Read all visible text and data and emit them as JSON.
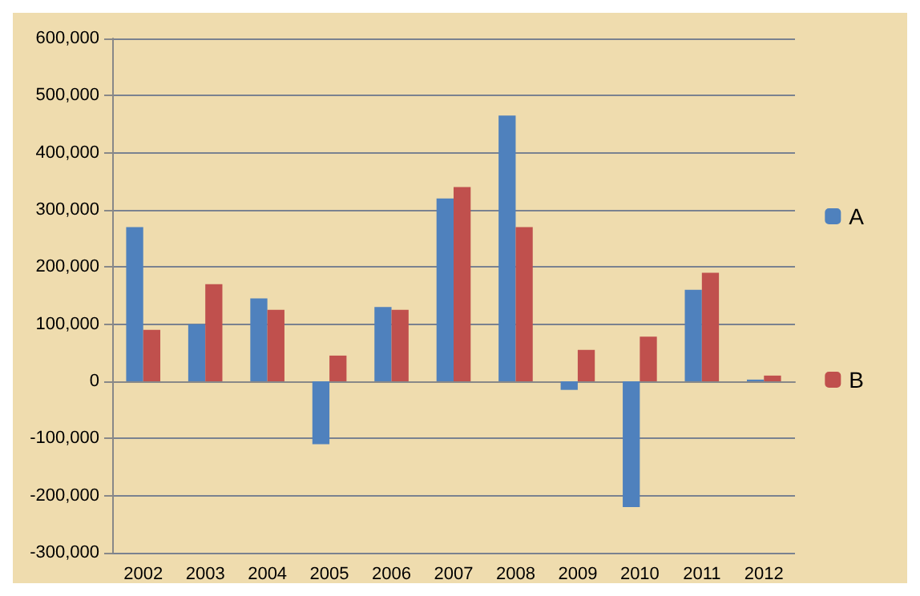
{
  "chart_data": {
    "type": "bar",
    "categories": [
      "2002",
      "2003",
      "2004",
      "2005",
      "2006",
      "2007",
      "2008",
      "2009",
      "2010",
      "2011",
      "2012"
    ],
    "series": [
      {
        "name": "A",
        "color": "#4f81bd",
        "values": [
          270000,
          100000,
          145000,
          -110000,
          130000,
          320000,
          465000,
          -15000,
          -220000,
          160000,
          3000
        ]
      },
      {
        "name": "B",
        "color": "#c0504d",
        "values": [
          90000,
          170000,
          125000,
          45000,
          125000,
          340000,
          270000,
          55000,
          78000,
          190000,
          10000
        ]
      }
    ],
    "ylim": [
      -300000,
      600000
    ],
    "yticks": [
      {
        "value": -300000,
        "label": "-300,000"
      },
      {
        "value": -200000,
        "label": "-200,000"
      },
      {
        "value": -100000,
        "label": "-100,000"
      },
      0,
      {
        "value": 100000,
        "label": "100,000"
      },
      {
        "value": 200000,
        "label": "200,000"
      },
      {
        "value": 300000,
        "label": "300,000"
      },
      {
        "value": 400000,
        "label": "400,000"
      },
      {
        "value": 500000,
        "label": "500,000"
      },
      {
        "value": 600000,
        "label": "600,000"
      }
    ],
    "grid": "y",
    "legend": "right"
  }
}
